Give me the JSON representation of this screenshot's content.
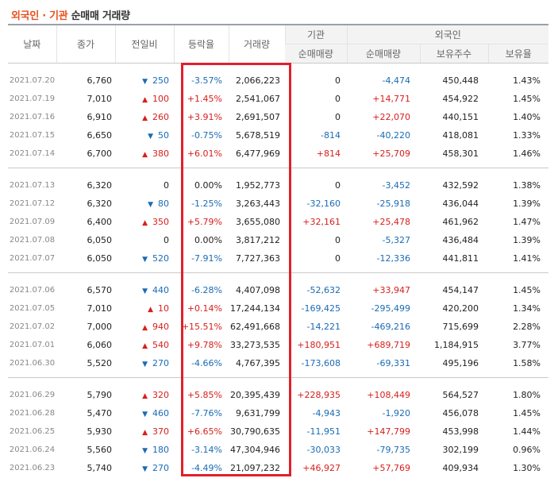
{
  "title": {
    "part1": "외국인 · 기관",
    "part2": "순매매 거래량"
  },
  "headers": {
    "date": "날짜",
    "close": "종가",
    "change": "전일비",
    "rate": "등락율",
    "volume": "거래량",
    "institution": "기관",
    "foreign": "외국인",
    "inst_net": "순매매량",
    "foreign_net": "순매매량",
    "foreign_holdings": "보유주수",
    "foreign_ratio": "보유율"
  },
  "groups": [
    [
      {
        "date": "2021.07.20",
        "close": "6,760",
        "dir": "down",
        "change": "250",
        "rate": "-3.57%",
        "volume": "2,066,223",
        "inst": "0",
        "foreign_net": "-4,474",
        "holdings": "450,448",
        "ratio": "1.43%"
      },
      {
        "date": "2021.07.19",
        "close": "7,010",
        "dir": "up",
        "change": "100",
        "rate": "+1.45%",
        "volume": "2,541,067",
        "inst": "0",
        "foreign_net": "+14,771",
        "holdings": "454,922",
        "ratio": "1.45%"
      },
      {
        "date": "2021.07.16",
        "close": "6,910",
        "dir": "up",
        "change": "260",
        "rate": "+3.91%",
        "volume": "2,691,507",
        "inst": "0",
        "foreign_net": "+22,070",
        "holdings": "440,151",
        "ratio": "1.40%"
      },
      {
        "date": "2021.07.15",
        "close": "6,650",
        "dir": "down",
        "change": "50",
        "rate": "-0.75%",
        "volume": "5,678,519",
        "inst": "-814",
        "foreign_net": "-40,220",
        "holdings": "418,081",
        "ratio": "1.33%"
      },
      {
        "date": "2021.07.14",
        "close": "6,700",
        "dir": "up",
        "change": "380",
        "rate": "+6.01%",
        "volume": "6,477,969",
        "inst": "+814",
        "foreign_net": "+25,709",
        "holdings": "458,301",
        "ratio": "1.46%"
      }
    ],
    [
      {
        "date": "2021.07.13",
        "close": "6,320",
        "dir": "none",
        "change": "0",
        "rate": "0.00%",
        "volume": "1,952,773",
        "inst": "0",
        "foreign_net": "-3,452",
        "holdings": "432,592",
        "ratio": "1.38%"
      },
      {
        "date": "2021.07.12",
        "close": "6,320",
        "dir": "down",
        "change": "80",
        "rate": "-1.25%",
        "volume": "3,263,443",
        "inst": "-32,160",
        "foreign_net": "-25,918",
        "holdings": "436,044",
        "ratio": "1.39%"
      },
      {
        "date": "2021.07.09",
        "close": "6,400",
        "dir": "up",
        "change": "350",
        "rate": "+5.79%",
        "volume": "3,655,080",
        "inst": "+32,161",
        "foreign_net": "+25,478",
        "holdings": "461,962",
        "ratio": "1.47%"
      },
      {
        "date": "2021.07.08",
        "close": "6,050",
        "dir": "none",
        "change": "0",
        "rate": "0.00%",
        "volume": "3,817,212",
        "inst": "0",
        "foreign_net": "-5,327",
        "holdings": "436,484",
        "ratio": "1.39%"
      },
      {
        "date": "2021.07.07",
        "close": "6,050",
        "dir": "down",
        "change": "520",
        "rate": "-7.91%",
        "volume": "7,727,363",
        "inst": "0",
        "foreign_net": "-12,336",
        "holdings": "441,811",
        "ratio": "1.41%"
      }
    ],
    [
      {
        "date": "2021.07.06",
        "close": "6,570",
        "dir": "down",
        "change": "440",
        "rate": "-6.28%",
        "volume": "4,407,098",
        "inst": "-52,632",
        "foreign_net": "+33,947",
        "holdings": "454,147",
        "ratio": "1.45%"
      },
      {
        "date": "2021.07.05",
        "close": "7,010",
        "dir": "up",
        "change": "10",
        "rate": "+0.14%",
        "volume": "17,244,134",
        "inst": "-169,425",
        "foreign_net": "-295,499",
        "holdings": "420,200",
        "ratio": "1.34%"
      },
      {
        "date": "2021.07.02",
        "close": "7,000",
        "dir": "up",
        "change": "940",
        "rate": "+15.51%",
        "volume": "62,491,668",
        "inst": "-14,221",
        "foreign_net": "-469,216",
        "holdings": "715,699",
        "ratio": "2.28%"
      },
      {
        "date": "2021.07.01",
        "close": "6,060",
        "dir": "up",
        "change": "540",
        "rate": "+9.78%",
        "volume": "33,273,535",
        "inst": "+180,951",
        "foreign_net": "+689,719",
        "holdings": "1,184,915",
        "ratio": "3.77%"
      },
      {
        "date": "2021.06.30",
        "close": "5,520",
        "dir": "down",
        "change": "270",
        "rate": "-4.66%",
        "volume": "4,767,395",
        "inst": "-173,608",
        "foreign_net": "-69,331",
        "holdings": "495,196",
        "ratio": "1.58%"
      }
    ],
    [
      {
        "date": "2021.06.29",
        "close": "5,790",
        "dir": "up",
        "change": "320",
        "rate": "+5.85%",
        "volume": "20,395,439",
        "inst": "+228,935",
        "foreign_net": "+108,449",
        "holdings": "564,527",
        "ratio": "1.80%"
      },
      {
        "date": "2021.06.28",
        "close": "5,470",
        "dir": "down",
        "change": "460",
        "rate": "-7.76%",
        "volume": "9,631,799",
        "inst": "-4,943",
        "foreign_net": "-1,920",
        "holdings": "456,078",
        "ratio": "1.45%"
      },
      {
        "date": "2021.06.25",
        "close": "5,930",
        "dir": "up",
        "change": "370",
        "rate": "+6.65%",
        "volume": "30,790,635",
        "inst": "-11,951",
        "foreign_net": "+147,799",
        "holdings": "453,998",
        "ratio": "1.44%"
      },
      {
        "date": "2021.06.24",
        "close": "5,560",
        "dir": "down",
        "change": "180",
        "rate": "-3.14%",
        "volume": "47,304,946",
        "inst": "-30,033",
        "foreign_net": "-79,735",
        "holdings": "302,199",
        "ratio": "0.96%"
      },
      {
        "date": "2021.06.23",
        "close": "5,740",
        "dir": "down",
        "change": "270",
        "rate": "-4.49%",
        "volume": "21,097,232",
        "inst": "+46,927",
        "foreign_net": "+57,769",
        "holdings": "409,934",
        "ratio": "1.30%"
      }
    ]
  ],
  "colors": {
    "up": "#d6201c",
    "down": "#1a6bb5",
    "highlight": "#e0202a",
    "title_accent": "#e8501e"
  },
  "icons": {
    "up": "triangle-up-icon",
    "down": "triangle-down-icon"
  }
}
